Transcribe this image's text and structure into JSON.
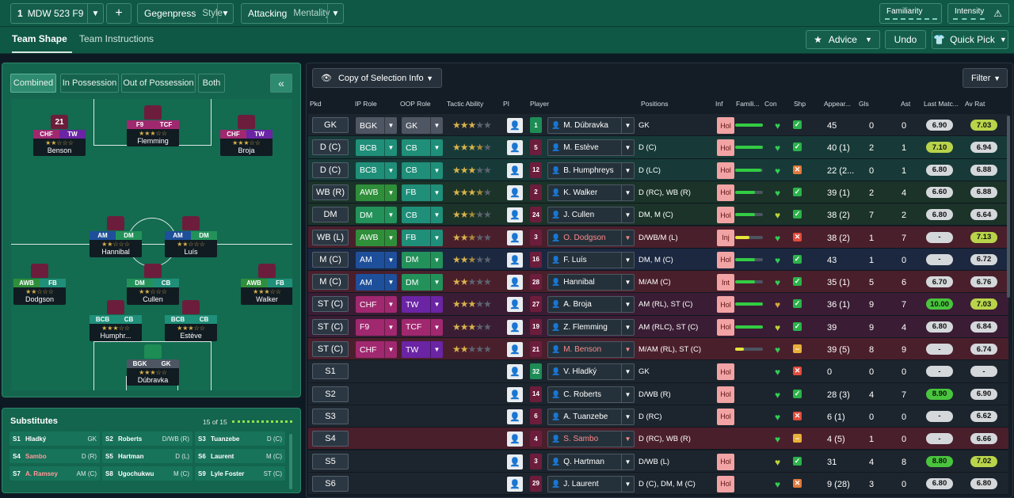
{
  "top": {
    "squad_num": "1",
    "squad_name": "MDW 523 F9",
    "plus": "+",
    "gegen": "Gegenpress",
    "gegen_sub": "Style",
    "attacking": "Attacking",
    "attacking_sub": "Mentality",
    "familiarity": "Familiarity",
    "intensity": "Intensity"
  },
  "tabs": {
    "shape": "Team Shape",
    "instructions": "Team Instructions"
  },
  "actions": {
    "advice": "Advice",
    "undo": "Undo",
    "quick_pick": "Quick Pick"
  },
  "formation_tabs": [
    "Combined",
    "In Possession",
    "Out of Possession",
    "Both"
  ],
  "pitch_players": [
    {
      "name": "Benson",
      "r1": "CHF",
      "r2": "TW",
      "num": "21",
      "stars": "★★☆☆☆",
      "c1": "#a0286f",
      "c2": "#6a24a4"
    },
    {
      "name": "Flemming",
      "r1": "F9",
      "r2": "TCF",
      "num": "",
      "stars": "★★★☆☆",
      "c1": "#a0286f",
      "c2": "#a0286f"
    },
    {
      "name": "Broja",
      "r1": "CHF",
      "r2": "TW",
      "num": "",
      "stars": "★★★☆☆",
      "c1": "#a0286f",
      "c2": "#6a24a4"
    },
    {
      "name": "Hannibal",
      "r1": "AM",
      "r2": "DM",
      "num": "",
      "stars": "★★☆☆☆",
      "c1": "#1e4f9a",
      "c2": "#23925a"
    },
    {
      "name": "Luís",
      "r1": "AM",
      "r2": "DM",
      "num": "",
      "stars": "★★☆☆☆",
      "c1": "#1e4f9a",
      "c2": "#23925a"
    },
    {
      "name": "Dodgson",
      "r1": "AWB",
      "r2": "FB",
      "num": "",
      "stars": "★★☆☆☆",
      "c1": "#2f8e3a",
      "c2": "#1f8f79"
    },
    {
      "name": "Cullen",
      "r1": "DM",
      "r2": "CB",
      "num": "",
      "stars": "★★☆☆☆",
      "c1": "#23925a",
      "c2": "#1f8f79"
    },
    {
      "name": "Walker",
      "r1": "AWB",
      "r2": "FB",
      "num": "",
      "stars": "★★★☆☆",
      "c1": "#2f8e3a",
      "c2": "#1f8f79"
    },
    {
      "name": "Humphr...",
      "r1": "BCB",
      "r2": "CB",
      "num": "",
      "stars": "★★★☆☆",
      "c1": "#1f8f79",
      "c2": "#1f8f79"
    },
    {
      "name": "Estève",
      "r1": "BCB",
      "r2": "CB",
      "num": "",
      "stars": "★★★☆☆",
      "c1": "#1f8f79",
      "c2": "#1f8f79"
    },
    {
      "name": "Dúbravka",
      "r1": "BGK",
      "r2": "GK",
      "num": "",
      "stars": "★★★☆☆",
      "c1": "#4f5663",
      "c2": "#4f5663"
    }
  ],
  "subs": {
    "title": "Substitutes",
    "count": "15 of 15",
    "items": [
      {
        "n": "S1",
        "name": "Hladký",
        "pos": "GK",
        "red": false
      },
      {
        "n": "S2",
        "name": "Roberts",
        "pos": "D/WB (R)",
        "red": false
      },
      {
        "n": "S3",
        "name": "Tuanzebe",
        "pos": "D (C)",
        "red": false
      },
      {
        "n": "S4",
        "name": "Sambo",
        "pos": "D (R)",
        "red": true
      },
      {
        "n": "S5",
        "name": "Hartman",
        "pos": "D (L)",
        "red": false
      },
      {
        "n": "S6",
        "name": "Laurent",
        "pos": "M (C)",
        "red": false
      },
      {
        "n": "S7",
        "name": "A. Ramsey",
        "pos": "AM (C)",
        "red": true
      },
      {
        "n": "S8",
        "name": "Ugochukwu",
        "pos": "M (C)",
        "red": false
      },
      {
        "n": "S9",
        "name": "Lyle Foster",
        "pos": "ST (C)",
        "red": false
      }
    ]
  },
  "table": {
    "copy_btn": "Copy of Selection Info",
    "filter": "Filter",
    "headers": [
      "Pkd",
      "IP Role",
      "OOP Role",
      "Tactic Ability",
      "PI",
      "Player",
      "Positions",
      "Inf",
      "Famili...",
      "Con",
      "Shp",
      "Appear...",
      "Gls",
      "Ast",
      "Last Matc...",
      "Av Rat"
    ],
    "rows": [
      {
        "pkd": "GK",
        "ip": "BGK",
        "ipc": "gk",
        "oop": "GK",
        "oopc": "gk",
        "stars": 3,
        "half": false,
        "num": "1",
        "gk": true,
        "player": "M. Dúbravka",
        "pos": "GK",
        "inf": "Hol",
        "fam": 1.0,
        "famc": "#33cc44",
        "con": "#33cc55",
        "shp": "ok",
        "apps": "45",
        "gls": "0",
        "ast": "0",
        "lm": "6.90",
        "lmc": "#d5d8db",
        "av": "7.03",
        "avc": "#b9d44a",
        "bg": "#1c252e",
        "red": false
      },
      {
        "pkd": "D (C)",
        "ip": "BCB",
        "ipc": "def",
        "oop": "CB",
        "oopc": "def",
        "stars": 3,
        "half": true,
        "num": "5",
        "gk": false,
        "player": "M. Estève",
        "pos": "D (C)",
        "inf": "Hol",
        "fam": 1.0,
        "famc": "#33cc44",
        "con": "#33cc55",
        "shp": "ok",
        "apps": "40 (1)",
        "gls": "2",
        "ast": "1",
        "lm": "7.10",
        "lmc": "#b9d44a",
        "av": "6.94",
        "avc": "#d5d8db",
        "bg": "#173a38",
        "red": false
      },
      {
        "pkd": "D (C)",
        "ip": "BCB",
        "ipc": "def",
        "oop": "CB",
        "oopc": "def",
        "stars": 3,
        "half": false,
        "num": "12",
        "gk": false,
        "player": "B. Humphreys",
        "pos": "D (LC)",
        "inf": "Hol",
        "fam": 0.95,
        "famc": "#33cc44",
        "con": "#33cc55",
        "shp": "warn",
        "apps": "22 (2...",
        "gls": "0",
        "ast": "1",
        "lm": "6.80",
        "lmc": "#d5d8db",
        "av": "6.88",
        "avc": "#d5d8db",
        "bg": "#173a38",
        "red": false
      },
      {
        "pkd": "WB (R)",
        "ip": "AWB",
        "ipc": "wb",
        "oop": "FB",
        "oopc": "def",
        "stars": 3,
        "half": true,
        "num": "2",
        "gk": false,
        "player": "K. Walker",
        "pos": "D (RC), WB (R)",
        "inf": "Hol",
        "fam": 0.7,
        "famc": "#33cc44",
        "con": "#33cc55",
        "shp": "ok",
        "apps": "39 (1)",
        "gls": "2",
        "ast": "4",
        "lm": "6.60",
        "lmc": "#d5d8db",
        "av": "6.88",
        "avc": "#d5d8db",
        "bg": "#1b3329",
        "red": false
      },
      {
        "pkd": "DM",
        "ip": "DM",
        "ipc": "dm",
        "oop": "CB",
        "oopc": "def",
        "stars": 2,
        "half": true,
        "num": "24",
        "gk": false,
        "player": "J. Cullen",
        "pos": "DM, M (C)",
        "inf": "Hol",
        "fam": 0.7,
        "famc": "#33cc44",
        "con": "#bcd43a",
        "shp": "ok",
        "apps": "38 (2)",
        "gls": "7",
        "ast": "2",
        "lm": "6.80",
        "lmc": "#d5d8db",
        "av": "6.64",
        "avc": "#d5d8db",
        "bg": "#1b3329",
        "red": false
      },
      {
        "pkd": "WB (L)",
        "ip": "AWB",
        "ipc": "wb",
        "oop": "FB",
        "oopc": "def",
        "stars": 2,
        "half": true,
        "num": "3",
        "gk": false,
        "player": "O. Dodgson",
        "pos": "D/WB/M (L)",
        "inf": "Inj",
        "fam": 0.5,
        "famc": "#e5e53a",
        "con": "#33cc55",
        "shp": "bad",
        "apps": "38 (2)",
        "gls": "1",
        "ast": "7",
        "lm": "-",
        "lmc": "#d5d8db",
        "av": "7.13",
        "avc": "#b9d44a",
        "bg": "#4a1f2c",
        "red": true
      },
      {
        "pkd": "M (C)",
        "ip": "AM",
        "ipc": "am",
        "oop": "DM",
        "oopc": "dm",
        "stars": 2,
        "half": true,
        "num": "16",
        "gk": false,
        "player": "F. Luís",
        "pos": "DM, M (C)",
        "inf": "Hol",
        "fam": 0.7,
        "famc": "#33cc44",
        "con": "#33cc55",
        "shp": "ok",
        "apps": "43",
        "gls": "1",
        "ast": "0",
        "lm": "-",
        "lmc": "#d5d8db",
        "av": "6.72",
        "avc": "#d5d8db",
        "bg": "#1b2840",
        "red": false
      },
      {
        "pkd": "M (C)",
        "ip": "AM",
        "ipc": "am",
        "oop": "DM",
        "oopc": "dm",
        "stars": 2,
        "half": false,
        "num": "28",
        "gk": false,
        "player": "Hannibal",
        "pos": "M/AM (C)",
        "inf": "Int",
        "fam": 0.7,
        "famc": "#33cc44",
        "con": "#33cc55",
        "shp": "ok",
        "apps": "35 (1)",
        "gls": "5",
        "ast": "6",
        "lm": "6.70",
        "lmc": "#d5d8db",
        "av": "6.76",
        "avc": "#d5d8db",
        "bg": "#4a1f2c",
        "red": false
      },
      {
        "pkd": "ST (C)",
        "ip": "CHF",
        "ipc": "fwd",
        "oop": "TW",
        "oopc": "tw",
        "stars": 3,
        "half": false,
        "num": "27",
        "gk": false,
        "player": "A. Broja",
        "pos": "AM (RL), ST (C)",
        "inf": "Hol",
        "fam": 1.0,
        "famc": "#33cc44",
        "con": "#d7a640",
        "shp": "ok",
        "apps": "36 (1)",
        "gls": "9",
        "ast": "7",
        "lm": "10.00",
        "lmc": "#49c43d",
        "av": "7.03",
        "avc": "#b9d44a",
        "bg": "#3a1d34",
        "red": false
      },
      {
        "pkd": "ST (C)",
        "ip": "F9",
        "ipc": "fwd",
        "oop": "TCF",
        "oopc": "fwd",
        "stars": 3,
        "half": false,
        "num": "19",
        "gk": false,
        "player": "Z. Flemming",
        "pos": "AM (RLC), ST (C)",
        "inf": "Hol",
        "fam": 1.0,
        "famc": "#33cc44",
        "con": "#bcd43a",
        "shp": "ok",
        "apps": "39",
        "gls": "9",
        "ast": "4",
        "lm": "6.80",
        "lmc": "#d5d8db",
        "av": "6.84",
        "avc": "#d5d8db",
        "bg": "#3a1d34",
        "red": false
      },
      {
        "pkd": "ST (C)",
        "ip": "CHF",
        "ipc": "fwd",
        "oop": "TW",
        "oopc": "tw",
        "stars": 2,
        "half": false,
        "num": "21",
        "gk": false,
        "player": "M. Benson",
        "pos": "M/AM (RL), ST (C)",
        "inf": "",
        "fam": 0.3,
        "famc": "#e5e53a",
        "con": "#33cc55",
        "shp": "mid",
        "apps": "39 (5)",
        "gls": "8",
        "ast": "9",
        "lm": "-",
        "lmc": "#d5d8db",
        "av": "6.74",
        "avc": "#d5d8db",
        "bg": "#4a1f2c",
        "red": true
      },
      {
        "pkd": "S1",
        "ip": "",
        "ipc": "",
        "oop": "",
        "oopc": "",
        "stars": 0,
        "half": false,
        "num": "32",
        "gk": true,
        "player": "V. Hladký",
        "pos": "GK",
        "inf": "Hol",
        "fam": -1,
        "famc": "",
        "con": "#33cc55",
        "shp": "bad",
        "apps": "0",
        "gls": "0",
        "ast": "0",
        "lm": "-",
        "lmc": "#d5d8db",
        "av": "-",
        "avc": "#d5d8db",
        "bg": "#1c252e",
        "red": false
      },
      {
        "pkd": "S2",
        "ip": "",
        "ipc": "",
        "oop": "",
        "oopc": "",
        "stars": 0,
        "half": false,
        "num": "14",
        "gk": false,
        "player": "C. Roberts",
        "pos": "D/WB (R)",
        "inf": "Hol",
        "fam": -1,
        "famc": "",
        "con": "#33cc55",
        "shp": "ok",
        "apps": "28 (3)",
        "gls": "4",
        "ast": "7",
        "lm": "8.90",
        "lmc": "#49c43d",
        "av": "6.90",
        "avc": "#d5d8db",
        "bg": "#1c252e",
        "red": false
      },
      {
        "pkd": "S3",
        "ip": "",
        "ipc": "",
        "oop": "",
        "oopc": "",
        "stars": 0,
        "half": false,
        "num": "6",
        "gk": false,
        "player": "A. Tuanzebe",
        "pos": "D (RC)",
        "inf": "Hol",
        "fam": -1,
        "famc": "",
        "con": "#33cc55",
        "shp": "bad",
        "apps": "6 (1)",
        "gls": "0",
        "ast": "0",
        "lm": "-",
        "lmc": "#d5d8db",
        "av": "6.62",
        "avc": "#d5d8db",
        "bg": "#1c252e",
        "red": false
      },
      {
        "pkd": "S4",
        "ip": "",
        "ipc": "",
        "oop": "",
        "oopc": "",
        "stars": 0,
        "half": false,
        "num": "4",
        "gk": false,
        "player": "S. Sambo",
        "pos": "D (RC), WB (R)",
        "inf": "",
        "fam": -1,
        "famc": "",
        "con": "#33cc55",
        "shp": "mid",
        "apps": "4 (5)",
        "gls": "1",
        "ast": "0",
        "lm": "-",
        "lmc": "#d5d8db",
        "av": "6.66",
        "avc": "#d5d8db",
        "bg": "#4a1f2c",
        "red": true
      },
      {
        "pkd": "S5",
        "ip": "",
        "ipc": "",
        "oop": "",
        "oopc": "",
        "stars": 0,
        "half": false,
        "num": "3",
        "gk": false,
        "player": "Q. Hartman",
        "pos": "D/WB (L)",
        "inf": "Hol",
        "fam": -1,
        "famc": "",
        "con": "#bcd43a",
        "shp": "ok",
        "apps": "31",
        "gls": "4",
        "ast": "8",
        "lm": "8.80",
        "lmc": "#49c43d",
        "av": "7.02",
        "avc": "#b9d44a",
        "bg": "#1c252e",
        "red": false
      },
      {
        "pkd": "S6",
        "ip": "",
        "ipc": "",
        "oop": "",
        "oopc": "",
        "stars": 0,
        "half": false,
        "num": "29",
        "gk": false,
        "player": "J. Laurent",
        "pos": "D (C), DM, M (C)",
        "inf": "Hol",
        "fam": -1,
        "famc": "",
        "con": "#33cc55",
        "shp": "warn",
        "apps": "9 (28)",
        "gls": "3",
        "ast": "0",
        "lm": "6.80",
        "lmc": "#d5d8db",
        "av": "6.80",
        "avc": "#d5d8db",
        "bg": "#1c252e",
        "red": false
      }
    ]
  }
}
